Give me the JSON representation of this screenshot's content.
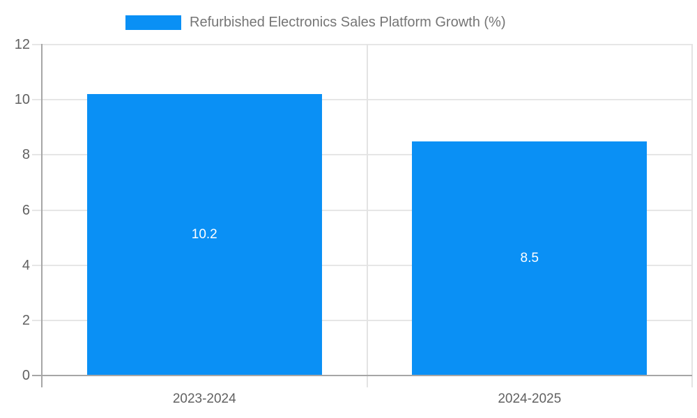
{
  "legend": {
    "label": "Refurbished Electronics Sales Platform Growth (%)"
  },
  "chart_data": {
    "type": "bar",
    "title": "Refurbished Electronics Sales Platform Growth (%)",
    "categories": [
      "2023-2024",
      "2024-2025"
    ],
    "values": [
      10.2,
      8.5
    ],
    "data_labels": [
      "10.2",
      "8.5"
    ],
    "series": [
      {
        "name": "Refurbished Electronics Sales Platform Growth (%)",
        "values": [
          10.2,
          8.5
        ]
      }
    ],
    "xlabel": "",
    "ylabel": "",
    "ylim": [
      0,
      12
    ],
    "yticks": [
      "0",
      "2",
      "4",
      "6",
      "8",
      "10",
      "12"
    ],
    "grid": true,
    "legend_position": "top",
    "colors": {
      "bar": "#0a90f5",
      "grid": "#e6e6e6",
      "axis": "#a6a6a6",
      "tick_label": "#616161",
      "legend_text": "#757575",
      "data_label": "#ffffff",
      "background": "#ffffff"
    }
  }
}
